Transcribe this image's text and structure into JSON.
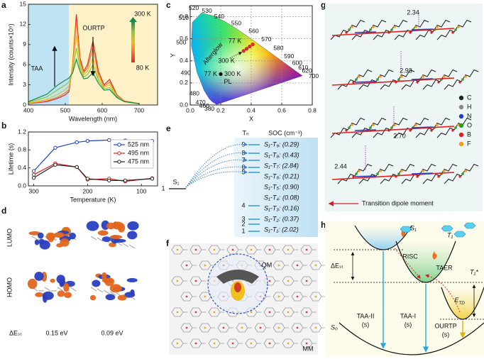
{
  "panel_labels": [
    "a",
    "b",
    "c",
    "d",
    "e",
    "f",
    "g",
    "h"
  ],
  "chart_data": [
    {
      "type": "line",
      "x": [
        400,
        450,
        480,
        500,
        510,
        520,
        530,
        540,
        550,
        560,
        575,
        590,
        605,
        620,
        640,
        660,
        700
      ],
      "series": [
        {
          "color": "#d7301f",
          "values": [
            0.2,
            0.5,
            1.0,
            1.5,
            2.0,
            6,
            13.5,
            7,
            5,
            6,
            9.5,
            5,
            3,
            3.8,
            1.5,
            0.6,
            0.2
          ]
        },
        {
          "color": "#f07a30",
          "values": [
            0.2,
            0.6,
            1.2,
            1.8,
            2.3,
            6,
            12.5,
            6.5,
            4.8,
            5.5,
            8.5,
            4.5,
            2.8,
            3.4,
            1.4,
            0.6,
            0.2
          ]
        },
        {
          "color": "#e8c020",
          "values": [
            0.3,
            0.8,
            1.6,
            2.3,
            2.8,
            5.5,
            10.5,
            6,
            4.5,
            5,
            7,
            4,
            2.6,
            3,
            1.3,
            0.5,
            0.2
          ]
        },
        {
          "color": "#8cc63f",
          "values": [
            0.4,
            1.2,
            2.3,
            3.0,
            3.4,
            5,
            8.5,
            5.5,
            4.2,
            4.5,
            6,
            3.6,
            2.4,
            2.6,
            1.2,
            0.5,
            0.2
          ]
        },
        {
          "color": "#1a8a4a",
          "values": [
            0.5,
            1.6,
            3.0,
            3.7,
            4.0,
            4.8,
            6.8,
            5.0,
            3.9,
            4.0,
            4.8,
            3.2,
            2.2,
            2.3,
            1.1,
            0.5,
            0.2
          ]
        }
      ],
      "xlim": [
        400,
        750
      ],
      "ylim": [
        0,
        15
      ],
      "xticks": [
        400,
        500,
        600,
        700
      ],
      "yticks": [
        0,
        3,
        6,
        9,
        12,
        15
      ],
      "xlabel": "Wavelength (nm)",
      "ylabel": "Intensity (counts×10⁵)",
      "bands": [
        {
          "from": 400,
          "to": 510,
          "color": "#bfe3f2"
        },
        {
          "from": 510,
          "to": 750,
          "color": "#fdf1c8"
        }
      ],
      "annotations": {
        "taa": "TAA",
        "ourtp": "OURTP"
      },
      "colorbar": {
        "top": "300 K",
        "bottom": "80 K"
      }
    },
    {
      "type": "line",
      "x": [
        300,
        260,
        220,
        200,
        160,
        130,
        80
      ],
      "series": [
        {
          "name": "525 nm",
          "color": "#1f3fd0",
          "values": [
            0.33,
            0.85,
            0.97,
            1.0,
            1.02,
            1.01,
            1.0
          ]
        },
        {
          "name": "495 nm",
          "color": "#d62020",
          "values": [
            0.25,
            0.5,
            0.42,
            0.14,
            0.16,
            0.1,
            0.17
          ]
        },
        {
          "name": "475 nm",
          "color": "#222222",
          "values": [
            0.18,
            0.47,
            0.42,
            0.16,
            0.12,
            0.12,
            0.16
          ]
        }
      ],
      "xlim": [
        310,
        70
      ],
      "ylim": [
        0,
        1.2
      ],
      "xticks": [
        300,
        200,
        100
      ],
      "yticks": [
        {
          "value": 0,
          "label": "0.0"
        },
        0.4,
        0.8,
        1.2
      ],
      "xlabel": "Temperature (K)",
      "ylabel": "Lifetime (s)",
      "legend": "right"
    },
    {
      "type": "scatter",
      "series": [
        {
          "name": "Afterglow",
          "color": "#e02828",
          "x": [
            0.35,
            0.37,
            0.39,
            0.41
          ],
          "values": [
            0.49,
            0.51,
            0.53,
            0.55
          ],
          "end_labels": [
            "77 K",
            "300 K"
          ]
        },
        {
          "name": "PL",
          "color": "#000000",
          "x": [
            0.2
          ],
          "values": [
            0.28
          ],
          "end_labels": [
            "77 K",
            "300 K"
          ]
        }
      ],
      "xlim": [
        0,
        0.8
      ],
      "ylim": [
        0,
        0.9
      ],
      "xticks": [
        {
          "value": 0,
          "label": "0.0"
        },
        0.2,
        0.4,
        0.6,
        0.8
      ],
      "yticks": [
        {
          "value": 0,
          "label": "0.0"
        },
        0.2,
        0.4,
        0.6,
        0.8
      ],
      "xlabel": "X",
      "ylabel": "Y",
      "grid": true,
      "spectral_labels": [
        "520",
        "530",
        "540",
        "550",
        "560",
        "570",
        "580",
        "590",
        "600",
        "610",
        "620",
        "700",
        "510",
        "500",
        "490",
        "480",
        "470",
        "460",
        "380"
      ],
      "label_colors": [
        "#3aa83a",
        "#5cb02c",
        "#7ab820",
        "#a8c010",
        "#c8b800",
        "#d8a800",
        "#e08a00",
        "#e07000",
        "#e05a10",
        "#d84818",
        "#d03a20",
        "#c82020",
        "#20a870",
        "#20a0b0",
        "#2090c8",
        "#2080d0",
        "#3050c8",
        "#4040c0",
        "#6a2aa8"
      ]
    }
  ],
  "orbitals": {
    "rows": [
      "LUMO",
      "HOMO"
    ],
    "gap_label": "ΔEₛₜ",
    "gaps": [
      "0.15 eV",
      "0.09 eV"
    ]
  },
  "energy_levels": {
    "s_label": "S₁",
    "s_index": "1",
    "t_label": "Tₙ",
    "t_levels": [
      "1",
      "2",
      "3",
      "4",
      "5",
      "6",
      "7",
      "8",
      "9"
    ],
    "soc_title": "SOC (cm⁻¹)",
    "soc": [
      {
        "text": "S₁-T₉: (0.29)",
        "color": "#111111"
      },
      {
        "text": "S₁-T₈: (0.43)",
        "color": "#d62020"
      },
      {
        "text": "S₁-T₇: (2.84)",
        "color": "#d62020"
      },
      {
        "text": "S₁-T₆: (0.21)",
        "color": "#111111"
      },
      {
        "text": "S₁-T₅: (0.90)",
        "color": "#d62020"
      },
      {
        "text": "S₁-T₄: (0.08)",
        "color": "#111111"
      },
      {
        "text": "S₁-T₃: (0.16)",
        "color": "#111111"
      },
      {
        "text": "S₁-T₂: (0.37)",
        "color": "#d62020"
      },
      {
        "text": "S₁-T₁: (2.02)",
        "color": "#d62020"
      }
    ]
  },
  "qm_mm": {
    "qm": "QM",
    "mm": "MM"
  },
  "packing": {
    "distances": [
      "2.34",
      "2.93",
      "2.70",
      "2.44"
    ],
    "elements": [
      {
        "symbol": "C",
        "color": "#222222"
      },
      {
        "symbol": "H",
        "color": "#8a8a8a"
      },
      {
        "symbol": "N",
        "color": "#1f3fd0"
      },
      {
        "symbol": "O",
        "color": "#2aa02a"
      },
      {
        "symbol": "B",
        "color": "#e02020"
      },
      {
        "symbol": "F",
        "color": "#f0a020"
      }
    ],
    "arrow_label": "Transition dipole moment"
  },
  "mechanism": {
    "s1": "S₁",
    "t1": "T₁",
    "t1_star": "T₁*",
    "s0": "S₀",
    "dest": "ΔEₛₜ",
    "etd": {
      "base": "E",
      "sub": "TD"
    },
    "risc": "RISC",
    "taer": "TAER",
    "channels": [
      {
        "name": "TAA-II",
        "unit": "(s)"
      },
      {
        "name": "TAA-I",
        "unit": "(s)"
      },
      {
        "name": "OURTP",
        "unit": "(s)"
      }
    ]
  }
}
